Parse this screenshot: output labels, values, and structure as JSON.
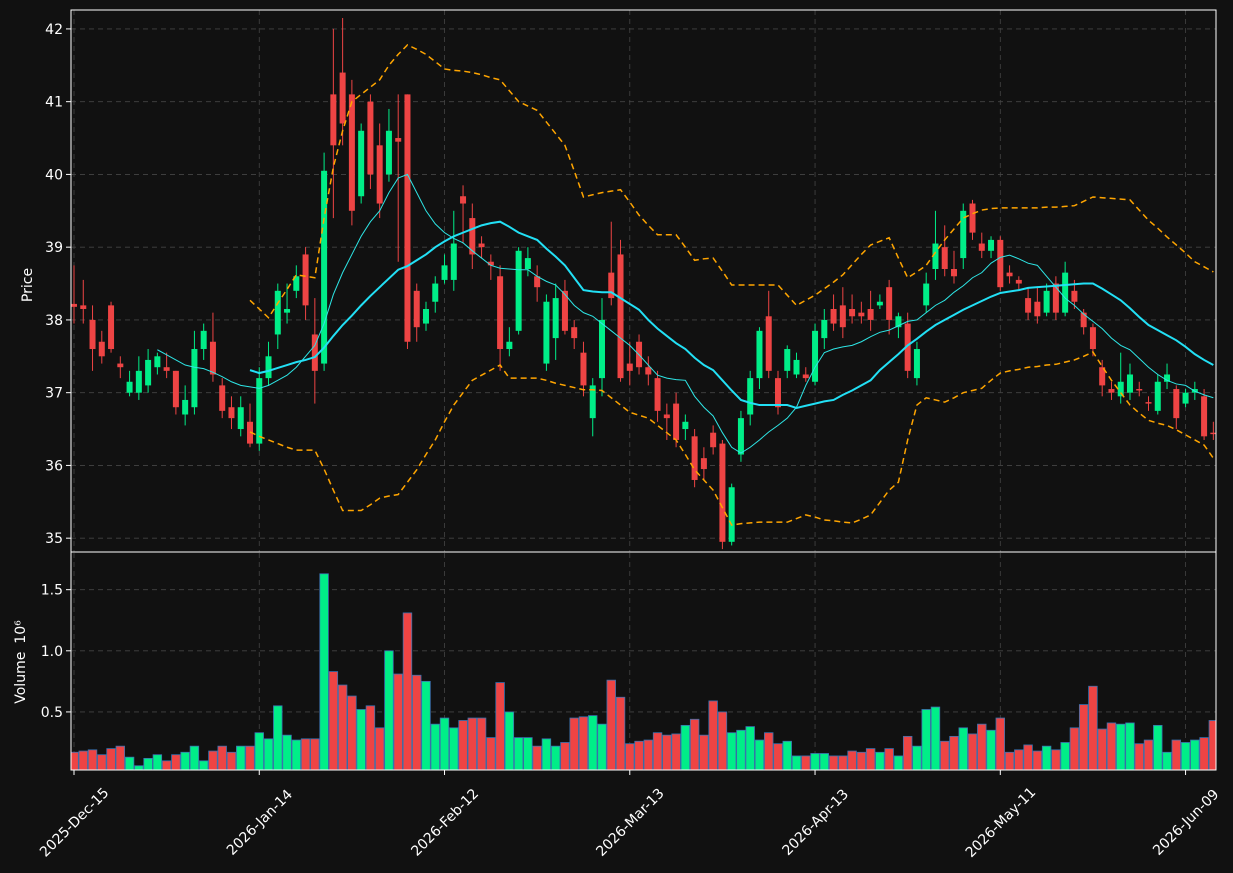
{
  "chart_data": {
    "type": "candlestick",
    "ylabel": "Price",
    "y2label": "Volume",
    "y2_exponent": "10⁶",
    "up_color": "#00ee88",
    "down_color": "#ee4444",
    "grid": true,
    "ylim": [
      34.81,
      42.26
    ],
    "yticks": [
      35,
      36,
      37,
      38,
      39,
      40,
      41,
      42
    ],
    "y2lim": [
      0.025,
      1.8
    ],
    "y2ticks": [
      0.5,
      {
        "value": 1,
        "label": "1.0"
      },
      1.5
    ],
    "categories": [
      "2025-Dec-15",
      null,
      null,
      null,
      null,
      null,
      null,
      null,
      null,
      null,
      null,
      null,
      null,
      null,
      null,
      null,
      null,
      null,
      null,
      null,
      "2026-Jan-14",
      null,
      null,
      null,
      null,
      null,
      null,
      null,
      null,
      null,
      null,
      null,
      null,
      null,
      null,
      null,
      null,
      null,
      null,
      null,
      "2026-Feb-12",
      null,
      null,
      null,
      null,
      null,
      null,
      null,
      null,
      null,
      null,
      null,
      null,
      null,
      null,
      null,
      null,
      null,
      null,
      null,
      "2026-Mar-13",
      null,
      null,
      null,
      null,
      null,
      null,
      null,
      null,
      null,
      null,
      null,
      null,
      null,
      null,
      null,
      null,
      null,
      null,
      null,
      "2026-Apr-13",
      null,
      null,
      null,
      null,
      null,
      null,
      null,
      null,
      null,
      null,
      null,
      null,
      null,
      null,
      null,
      null,
      null,
      null,
      null,
      "2026-May-11",
      null,
      null,
      null,
      null,
      null,
      null,
      null,
      null,
      null,
      null,
      null,
      null,
      null,
      null,
      null,
      null,
      null,
      null,
      null,
      "2026-Jun-09",
      null,
      null,
      null
    ],
    "open": [
      38.22,
      38.2,
      38.0,
      37.7,
      38.2,
      37.4,
      37.0,
      37.0,
      37.1,
      37.35,
      37.35,
      37.3,
      36.7,
      36.8,
      37.6,
      37.7,
      37.1,
      36.8,
      36.5,
      36.6,
      36.3,
      37.2,
      37.8,
      38.1,
      38.4,
      38.9,
      37.8,
      37.4,
      41.1,
      41.4,
      41.1,
      39.7,
      41.0,
      40.4,
      40.0,
      40.5,
      41.1,
      38.4,
      37.95,
      38.25,
      38.55,
      38.55,
      39.7,
      39.4,
      39.05,
      38.8,
      38.6,
      37.6,
      37.85,
      38.7,
      38.6,
      37.4,
      37.75,
      38.4,
      37.9,
      37.55,
      36.65,
      37.2,
      38.65,
      38.9,
      37.4,
      37.7,
      37.35,
      37.2,
      36.7,
      36.85,
      36.5,
      36.4,
      36.1,
      36.45,
      36.3,
      34.95,
      36.15,
      36.7,
      37.2,
      38.05,
      37.2,
      37.3,
      37.25,
      37.25,
      37.15,
      37.75,
      38.15,
      38.2,
      38.15,
      38.1,
      38.15,
      38.2,
      38.45,
      37.9,
      37.95,
      37.2,
      38.2,
      38.7,
      39.0,
      38.7,
      38.85,
      39.6,
      39.05,
      38.95,
      39.1,
      38.65,
      38.55,
      38.3,
      38.25,
      38.1,
      38.5,
      38.1,
      38.4,
      38.1,
      37.9,
      37.35,
      37.05,
      36.95,
      37.0,
      37.05,
      36.87,
      36.75,
      37.15,
      37.05,
      36.85,
      37.0,
      36.95,
      36.45
    ],
    "high": [
      38.75,
      38.55,
      38.2,
      37.85,
      38.25,
      37.5,
      37.3,
      37.5,
      37.6,
      37.55,
      37.55,
      37.3,
      37.1,
      37.85,
      37.95,
      38.1,
      37.2,
      36.95,
      36.95,
      36.85,
      37.35,
      37.7,
      38.5,
      38.5,
      38.75,
      39.0,
      38.3,
      40.3,
      42.0,
      42.15,
      41.3,
      40.7,
      41.1,
      40.7,
      40.9,
      41.1,
      41.1,
      38.5,
      38.25,
      38.6,
      38.9,
      39.5,
      39.85,
      39.6,
      39.15,
      38.9,
      38.75,
      37.9,
      39.0,
      39.0,
      38.75,
      38.35,
      38.5,
      38.55,
      38.0,
      37.7,
      37.2,
      38.3,
      39.35,
      39.1,
      37.7,
      37.8,
      37.5,
      37.3,
      36.85,
      37.0,
      36.7,
      36.5,
      36.25,
      36.55,
      36.35,
      35.75,
      36.75,
      37.3,
      37.9,
      38.4,
      37.3,
      37.65,
      37.55,
      37.35,
      37.95,
      38.15,
      38.35,
      38.45,
      38.35,
      38.25,
      38.4,
      38.35,
      38.55,
      38.1,
      38.1,
      37.7,
      38.65,
      39.5,
      39.3,
      38.95,
      39.6,
      39.65,
      39.2,
      39.15,
      39.15,
      38.75,
      38.6,
      38.45,
      38.45,
      38.5,
      38.6,
      38.8,
      38.55,
      38.15,
      37.95,
      37.45,
      37.15,
      37.55,
      37.4,
      37.15,
      36.95,
      37.25,
      37.4,
      37.1,
      37.05,
      37.15,
      37.05,
      36.6
    ],
    "low": [
      37.95,
      37.95,
      37.3,
      37.4,
      37.55,
      37.2,
      36.95,
      36.9,
      37.0,
      37.25,
      37.2,
      36.7,
      36.55,
      36.7,
      37.45,
      37.15,
      36.65,
      36.5,
      36.4,
      36.25,
      36.2,
      37.1,
      37.6,
      37.95,
      38.3,
      38.0,
      36.85,
      37.3,
      39.4,
      40.4,
      39.3,
      39.6,
      39.8,
      39.4,
      39.9,
      38.8,
      37.6,
      37.7,
      37.85,
      38.1,
      38.5,
      38.4,
      39.05,
      38.7,
      38.85,
      38.55,
      37.3,
      37.5,
      37.8,
      38.6,
      38.25,
      37.3,
      37.45,
      37.8,
      37.6,
      36.95,
      36.4,
      36.95,
      38.2,
      37.15,
      37.1,
      37.25,
      37.1,
      36.6,
      36.35,
      36.25,
      36.35,
      35.7,
      35.8,
      36.15,
      34.85,
      34.9,
      36.05,
      36.55,
      37.05,
      37.2,
      36.7,
      37.2,
      37.2,
      37.15,
      37.1,
      37.6,
      37.85,
      37.75,
      37.95,
      37.95,
      37.85,
      38.15,
      37.8,
      37.75,
      37.2,
      37.1,
      38.1,
      38.55,
      38.6,
      38.5,
      38.7,
      39.1,
      38.85,
      38.85,
      38.4,
      38.5,
      38.4,
      38.0,
      37.95,
      38.05,
      38.0,
      38.05,
      38.15,
      37.8,
      37.5,
      36.95,
      36.9,
      36.85,
      36.9,
      36.95,
      36.75,
      36.7,
      37.05,
      36.5,
      36.8,
      36.9,
      36.35,
      36.35
    ],
    "close": [
      38.18,
      38.15,
      37.6,
      37.5,
      37.6,
      37.35,
      37.15,
      37.3,
      37.45,
      37.5,
      37.3,
      36.8,
      36.9,
      37.6,
      37.85,
      37.25,
      36.75,
      36.65,
      36.8,
      36.3,
      37.2,
      37.5,
      38.4,
      38.15,
      38.6,
      38.2,
      37.3,
      40.05,
      40.4,
      40.7,
      39.5,
      40.6,
      40.0,
      39.6,
      40.6,
      40.45,
      37.7,
      37.9,
      38.15,
      38.5,
      38.75,
      39.05,
      39.6,
      38.9,
      39.0,
      38.75,
      37.6,
      37.7,
      38.95,
      38.85,
      38.45,
      38.25,
      38.3,
      37.85,
      37.75,
      37.1,
      37.1,
      38.0,
      38.3,
      37.2,
      37.3,
      37.35,
      37.25,
      36.75,
      36.65,
      36.35,
      36.6,
      35.8,
      35.95,
      36.25,
      34.95,
      35.7,
      36.65,
      37.2,
      37.85,
      37.3,
      36.8,
      37.6,
      37.45,
      37.2,
      37.85,
      38.0,
      37.95,
      37.9,
      38.05,
      38.05,
      38.0,
      38.25,
      38.0,
      38.05,
      37.3,
      37.6,
      38.5,
      39.05,
      38.7,
      38.6,
      39.5,
      39.2,
      38.95,
      39.1,
      38.45,
      38.6,
      38.5,
      38.1,
      38.05,
      38.4,
      38.1,
      38.65,
      38.25,
      37.9,
      37.6,
      37.1,
      37.0,
      37.15,
      37.25,
      37.03,
      36.85,
      37.15,
      37.25,
      36.65,
      37.0,
      37.05,
      36.4,
      36.43
    ],
    "volume": [
      0.17,
      0.18,
      0.19,
      0.15,
      0.2,
      0.22,
      0.13,
      0.06,
      0.12,
      0.15,
      0.1,
      0.15,
      0.17,
      0.22,
      0.1,
      0.18,
      0.22,
      0.17,
      0.22,
      0.22,
      0.33,
      0.28,
      0.55,
      0.31,
      0.27,
      0.28,
      0.28,
      1.63,
      0.83,
      0.72,
      0.63,
      0.52,
      0.55,
      0.37,
      1.0,
      0.81,
      1.31,
      0.8,
      0.75,
      0.4,
      0.45,
      0.37,
      0.43,
      0.45,
      0.45,
      0.29,
      0.74,
      0.5,
      0.29,
      0.29,
      0.22,
      0.28,
      0.22,
      0.25,
      0.45,
      0.46,
      0.47,
      0.4,
      0.76,
      0.62,
      0.24,
      0.26,
      0.27,
      0.33,
      0.31,
      0.32,
      0.39,
      0.44,
      0.31,
      0.59,
      0.5,
      0.33,
      0.35,
      0.38,
      0.27,
      0.33,
      0.24,
      0.26,
      0.14,
      0.14,
      0.16,
      0.16,
      0.14,
      0.14,
      0.18,
      0.17,
      0.2,
      0.17,
      0.2,
      0.14,
      0.3,
      0.22,
      0.52,
      0.54,
      0.26,
      0.3,
      0.37,
      0.32,
      0.4,
      0.35,
      0.45,
      0.17,
      0.19,
      0.23,
      0.18,
      0.22,
      0.19,
      0.25,
      0.37,
      0.56,
      0.71,
      0.36,
      0.41,
      0.4,
      0.41,
      0.24,
      0.27,
      0.39,
      0.17,
      0.27,
      0.25,
      0.27,
      0.29,
      0.43
    ],
    "overlays": [
      {
        "color": "#2ee6e6",
        "style": "solid",
        "linewidth": 1,
        "values": [
          null,
          null,
          null,
          null,
          null,
          null,
          null,
          null,
          null,
          37.59,
          37.52,
          37.45,
          37.38,
          37.35,
          37.33,
          37.28,
          37.22,
          37.15,
          37.1,
          37.08,
          37.06,
          37.1,
          37.17,
          37.24,
          37.35,
          37.5,
          37.65,
          37.95,
          38.35,
          38.65,
          38.9,
          39.15,
          39.35,
          39.5,
          39.75,
          39.95,
          40.0,
          39.75,
          39.5,
          39.32,
          39.2,
          39.12,
          39.06,
          38.95,
          38.85,
          38.75,
          38.71,
          38.7,
          38.69,
          38.69,
          38.6,
          38.53,
          38.48,
          38.35,
          38.2,
          38.1,
          38.05,
          37.95,
          37.85,
          37.75,
          37.65,
          37.52,
          37.38,
          37.24,
          37.2,
          37.18,
          37.17,
          36.95,
          36.8,
          36.68,
          36.45,
          36.25,
          36.17,
          36.25,
          36.35,
          36.46,
          36.55,
          36.65,
          36.8,
          37.1,
          37.35,
          37.55,
          37.6,
          37.63,
          37.65,
          37.7,
          37.77,
          37.83,
          37.86,
          37.92,
          37.98,
          38.0,
          38.1,
          38.2,
          38.27,
          38.38,
          38.47,
          38.58,
          38.65,
          38.78,
          38.86,
          38.89,
          38.84,
          38.78,
          38.75,
          38.6,
          38.45,
          38.3,
          38.2,
          38.08,
          37.98,
          37.88,
          37.75,
          37.65,
          37.59,
          37.47,
          37.35,
          37.25,
          37.17,
          37.12,
          37.1,
          37.02,
          36.97,
          36.93
        ]
      },
      {
        "color": "#22e0f5",
        "style": "solid",
        "linewidth": 2,
        "values": [
          null,
          null,
          null,
          null,
          null,
          null,
          null,
          null,
          null,
          null,
          null,
          null,
          null,
          null,
          null,
          null,
          null,
          null,
          null,
          37.31,
          37.27,
          37.3,
          37.34,
          37.38,
          37.42,
          37.45,
          37.49,
          37.62,
          37.78,
          37.93,
          38.06,
          38.2,
          38.33,
          38.45,
          38.57,
          38.69,
          38.74,
          38.82,
          38.9,
          39.0,
          39.08,
          39.15,
          39.2,
          39.25,
          39.3,
          39.33,
          39.35,
          39.28,
          39.2,
          39.15,
          39.1,
          38.98,
          38.87,
          38.75,
          38.58,
          38.41,
          38.39,
          38.38,
          38.38,
          38.3,
          38.22,
          38.14,
          38.0,
          37.88,
          37.78,
          37.68,
          37.6,
          37.48,
          37.38,
          37.31,
          37.17,
          37.03,
          36.9,
          36.86,
          36.83,
          36.83,
          36.83,
          36.83,
          36.79,
          36.82,
          36.85,
          36.88,
          36.9,
          36.97,
          37.03,
          37.1,
          37.17,
          37.31,
          37.42,
          37.53,
          37.65,
          37.74,
          37.84,
          37.93,
          38.0,
          38.07,
          38.14,
          38.2,
          38.26,
          38.32,
          38.37,
          38.39,
          38.41,
          38.44,
          38.45,
          38.46,
          38.47,
          38.48,
          38.49,
          38.5,
          38.5,
          38.43,
          38.35,
          38.27,
          38.16,
          38.04,
          37.93,
          37.86,
          37.79,
          37.72,
          37.63,
          37.53,
          37.45,
          37.38
        ]
      },
      {
        "color": "#ffa500",
        "style": "dashed",
        "linewidth": 1.5,
        "values": [
          null,
          null,
          null,
          null,
          null,
          null,
          null,
          null,
          null,
          null,
          null,
          null,
          null,
          null,
          null,
          null,
          null,
          null,
          null,
          38.27,
          38.15,
          38.03,
          38.23,
          38.42,
          38.62,
          38.6,
          38.58,
          39.4,
          40.1,
          40.6,
          41.0,
          41.1,
          41.2,
          41.3,
          41.5,
          41.65,
          41.78,
          41.72,
          41.65,
          41.55,
          41.45,
          41.43,
          41.42,
          41.4,
          41.37,
          41.33,
          41.3,
          41.15,
          41.0,
          40.94,
          40.88,
          40.72,
          40.56,
          40.4,
          40.05,
          39.69,
          39.72,
          39.75,
          39.77,
          39.79,
          39.62,
          39.44,
          39.3,
          39.17,
          39.17,
          39.17,
          39.0,
          38.82,
          38.84,
          38.85,
          38.67,
          38.48,
          38.48,
          38.48,
          38.48,
          38.48,
          38.48,
          38.34,
          38.2,
          38.27,
          38.34,
          38.43,
          38.52,
          38.62,
          38.76,
          38.9,
          39.03,
          39.08,
          39.13,
          38.85,
          38.58,
          38.66,
          38.75,
          38.93,
          39.1,
          39.25,
          39.4,
          39.46,
          39.51,
          39.53,
          39.54,
          39.54,
          39.54,
          39.54,
          39.54,
          39.55,
          39.55,
          39.56,
          39.57,
          39.63,
          39.69,
          39.68,
          39.67,
          39.66,
          39.65,
          39.51,
          39.37,
          39.26,
          39.14,
          39.03,
          38.92,
          38.8,
          38.73,
          38.66
        ]
      },
      {
        "color": "#ffa500",
        "style": "dashed",
        "linewidth": 1.5,
        "values": [
          null,
          null,
          null,
          null,
          null,
          null,
          null,
          null,
          null,
          null,
          null,
          null,
          null,
          null,
          null,
          null,
          null,
          null,
          null,
          36.46,
          36.4,
          36.35,
          36.3,
          36.25,
          36.21,
          36.21,
          36.21,
          35.95,
          35.66,
          35.38,
          35.38,
          35.38,
          35.46,
          35.55,
          35.58,
          35.6,
          35.77,
          35.94,
          36.15,
          36.35,
          36.6,
          36.83,
          37.0,
          37.17,
          37.24,
          37.31,
          37.38,
          37.2,
          37.2,
          37.2,
          37.2,
          37.17,
          37.13,
          37.1,
          37.07,
          37.04,
          37.04,
          37.03,
          36.93,
          36.83,
          36.73,
          36.69,
          36.65,
          36.55,
          36.45,
          36.35,
          36.15,
          35.94,
          35.8,
          35.66,
          35.42,
          35.18,
          35.2,
          35.21,
          35.22,
          35.22,
          35.22,
          35.22,
          35.27,
          35.32,
          35.29,
          35.25,
          35.24,
          35.22,
          35.21,
          35.26,
          35.32,
          35.49,
          35.66,
          35.77,
          36.35,
          36.83,
          36.93,
          36.9,
          36.87,
          36.93,
          37.0,
          37.03,
          37.06,
          37.17,
          37.27,
          37.3,
          37.32,
          37.35,
          37.36,
          37.38,
          37.39,
          37.42,
          37.45,
          37.5,
          37.56,
          37.36,
          37.17,
          37.0,
          36.83,
          36.72,
          36.62,
          36.58,
          36.55,
          36.49,
          36.42,
          36.35,
          36.28,
          36.1
        ]
      }
    ]
  }
}
